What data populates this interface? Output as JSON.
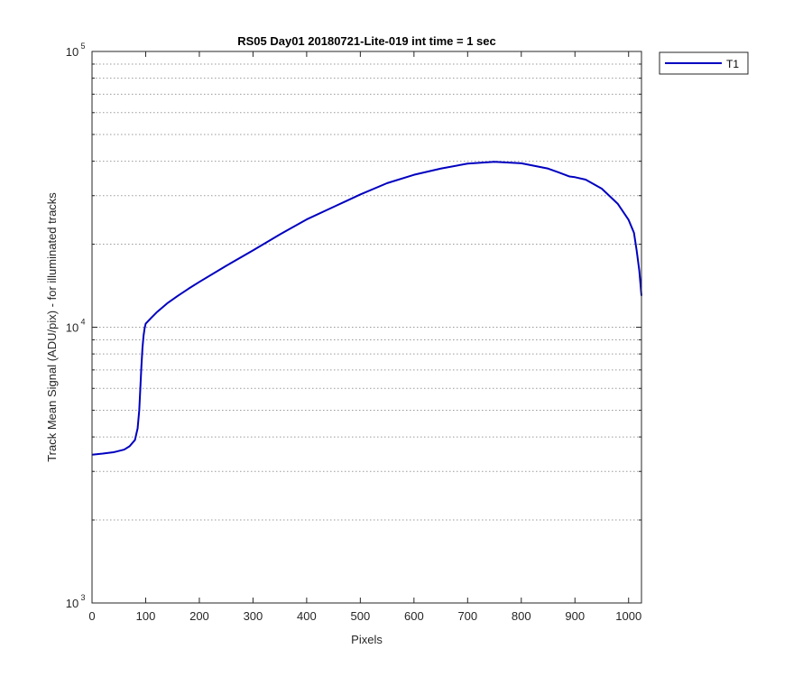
{
  "chart_data": {
    "type": "line",
    "title": "RS05 Day01 20180721-Lite-019 int time = 1 sec",
    "xlabel": "Pixels",
    "ylabel": "Track Mean Signal (ADU/pix) - for illuminated tracks",
    "xlim": [
      0,
      1024
    ],
    "ylim": [
      1000,
      100000
    ],
    "yscale": "log",
    "grid": "y-minor-dotted",
    "legend": "outside-top-right",
    "x_ticks": [
      "0",
      "100",
      "200",
      "300",
      "400",
      "500",
      "600",
      "700",
      "800",
      "900",
      "1000"
    ],
    "y_ticks": [
      {
        "base": "10",
        "exp": "3",
        "value": 1000
      },
      {
        "base": "10",
        "exp": "4",
        "value": 10000
      },
      {
        "base": "10",
        "exp": "5",
        "value": 100000
      }
    ],
    "series": [
      {
        "name": "T1",
        "color": "#0000c0",
        "x": [
          0,
          20,
          40,
          60,
          70,
          80,
          85,
          88,
          90,
          92,
          94,
          96,
          98,
          100,
          110,
          120,
          140,
          160,
          180,
          200,
          250,
          300,
          350,
          400,
          450,
          500,
          550,
          600,
          650,
          700,
          750,
          800,
          850,
          870,
          890,
          900,
          920,
          950,
          980,
          1000,
          1010,
          1015,
          1020,
          1024
        ],
        "y": [
          3450,
          3480,
          3520,
          3600,
          3700,
          3900,
          4300,
          5000,
          6000,
          7200,
          8400,
          9300,
          9900,
          10300,
          10800,
          11300,
          12200,
          13000,
          13800,
          14600,
          16700,
          19000,
          21700,
          24600,
          27300,
          30300,
          33300,
          35700,
          37600,
          39200,
          39800,
          39300,
          37600,
          36400,
          35200,
          35000,
          34300,
          31800,
          28000,
          24500,
          22000,
          19000,
          16000,
          13000
        ]
      }
    ]
  }
}
